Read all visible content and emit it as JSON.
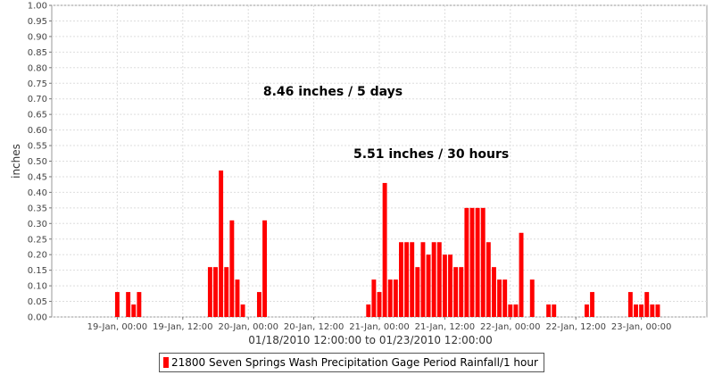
{
  "chart_data": {
    "type": "bar",
    "ylabel": "inches",
    "xlabel": "01/18/2010 12:00:00 to 01/23/2010 12:00:00",
    "ylim": [
      0,
      1.0
    ],
    "yticks": [
      "0.00",
      "0.05",
      "0.10",
      "0.15",
      "0.20",
      "0.25",
      "0.30",
      "0.35",
      "0.40",
      "0.45",
      "0.50",
      "0.55",
      "0.60",
      "0.65",
      "0.70",
      "0.75",
      "0.80",
      "0.85",
      "0.90",
      "0.95",
      "1.00"
    ],
    "xlim_hours": [
      0,
      120
    ],
    "xticks": [
      {
        "hour": 12,
        "label": "19-Jan, 00:00"
      },
      {
        "hour": 24,
        "label": "19-Jan, 12:00"
      },
      {
        "hour": 36,
        "label": "20-Jan, 00:00"
      },
      {
        "hour": 48,
        "label": "20-Jan, 12:00"
      },
      {
        "hour": 60,
        "label": "21-Jan, 00:00"
      },
      {
        "hour": 72,
        "label": "21-Jan, 12:00"
      },
      {
        "hour": 84,
        "label": "22-Jan, 00:00"
      },
      {
        "hour": 96,
        "label": "22-Jan, 12:00"
      },
      {
        "hour": 108,
        "label": "23-Jan, 00:00"
      }
    ],
    "grid": true,
    "legend_position": "bottom",
    "series": [
      {
        "name": "21800 Seven Springs Wash Precipitation Gage Period Rainfall/1 hour",
        "color": "#ff0000",
        "x_hours": [
          12,
          14,
          15,
          16,
          29,
          30,
          31,
          32,
          33,
          34,
          35,
          38,
          39,
          58,
          59,
          60,
          61,
          62,
          63,
          64,
          65,
          66,
          67,
          68,
          69,
          70,
          71,
          72,
          73,
          74,
          75,
          76,
          77,
          78,
          79,
          80,
          81,
          82,
          83,
          84,
          85,
          86,
          88,
          91,
          92,
          98,
          99,
          106,
          107,
          108,
          109,
          110,
          111
        ],
        "values": [
          0.08,
          0.08,
          0.04,
          0.08,
          0.16,
          0.16,
          0.47,
          0.16,
          0.31,
          0.12,
          0.04,
          0.08,
          0.31,
          0.04,
          0.12,
          0.08,
          0.43,
          0.12,
          0.12,
          0.24,
          0.24,
          0.24,
          0.16,
          0.24,
          0.2,
          0.24,
          0.24,
          0.2,
          0.2,
          0.16,
          0.16,
          0.35,
          0.35,
          0.35,
          0.35,
          0.24,
          0.16,
          0.12,
          0.12,
          0.04,
          0.04,
          0.27,
          0.12,
          0.04,
          0.04,
          0.04,
          0.08,
          0.08,
          0.04,
          0.04,
          0.08,
          0.04,
          0.04
        ]
      }
    ],
    "annotations": [
      {
        "text": "8.46 inches / 5 days",
        "x_hour": 51.5,
        "y": 0.71
      },
      {
        "text": "5.51 inches / 30 hours",
        "x_hour": 69.5,
        "y": 0.51
      }
    ]
  }
}
